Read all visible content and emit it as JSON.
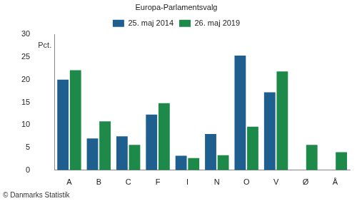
{
  "chart_data": {
    "type": "bar",
    "title": "Europa-Parlamentsvalg",
    "ylabel": "Pct.",
    "annotation": "© Danmarks Statistik",
    "categories": [
      "A",
      "B",
      "C",
      "F",
      "I",
      "N",
      "O",
      "V",
      "Ø",
      "Å"
    ],
    "series": [
      {
        "name": "25. maj 2014",
        "color": "#1f5f8f",
        "values": [
          20.0,
          7.0,
          7.5,
          12.3,
          3.2,
          8.0,
          25.3,
          17.2,
          null,
          null
        ]
      },
      {
        "name": "26. maj 2019",
        "color": "#1e8a4a",
        "values": [
          22.1,
          10.8,
          5.6,
          14.8,
          2.7,
          3.3,
          9.6,
          21.8,
          5.6,
          4.0
        ]
      }
    ],
    "ylim": [
      0,
      30
    ],
    "yticks": [
      0,
      5,
      10,
      15,
      20,
      25,
      30
    ],
    "grid": false,
    "legend": "top"
  }
}
